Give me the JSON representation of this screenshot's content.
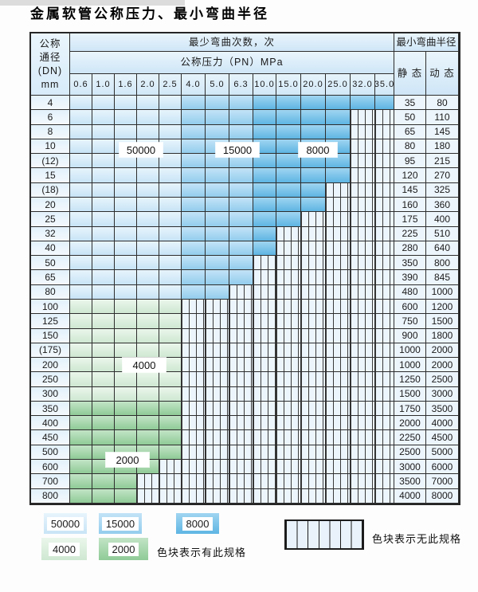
{
  "title": "金属软管公称压力、最小弯曲半径",
  "table": {
    "corner_lines": [
      "公称",
      "通径",
      "(DN)",
      "mm"
    ],
    "cycles_header": "最少弯曲次数，次",
    "pressure_header": "公称压力（PN）MPa",
    "radius_header": "最小弯曲半径",
    "static_label": "静 态",
    "dynamic_label": "动 态",
    "pressures": [
      "0.6",
      "1.0",
      "1.6",
      "2.0",
      "2.5",
      "4.0",
      "5.0",
      "6.3",
      "10.0",
      "15.0",
      "20.0",
      "25.0",
      "32.0",
      "35.0"
    ],
    "rows": [
      {
        "dn": "4",
        "colored": 14,
        "band": "b",
        "static": "35",
        "dynamic": "80"
      },
      {
        "dn": "6",
        "colored": 12,
        "band": "b",
        "static": "50",
        "dynamic": "110"
      },
      {
        "dn": "8",
        "colored": 12,
        "band": "b",
        "static": "65",
        "dynamic": "145"
      },
      {
        "dn": "10",
        "colored": 12,
        "band": "b",
        "static": "80",
        "dynamic": "180"
      },
      {
        "dn": "(12)",
        "colored": 12,
        "band": "b",
        "static": "95",
        "dynamic": "215"
      },
      {
        "dn": "15",
        "colored": 12,
        "band": "b",
        "static": "120",
        "dynamic": "270"
      },
      {
        "dn": "(18)",
        "colored": 11,
        "band": "b",
        "static": "145",
        "dynamic": "325"
      },
      {
        "dn": "20",
        "colored": 11,
        "band": "b",
        "static": "160",
        "dynamic": "360"
      },
      {
        "dn": "25",
        "colored": 10,
        "band": "b",
        "static": "175",
        "dynamic": "400"
      },
      {
        "dn": "32",
        "colored": 9,
        "band": "b",
        "static": "225",
        "dynamic": "510"
      },
      {
        "dn": "40",
        "colored": 9,
        "band": "b",
        "static": "280",
        "dynamic": "640"
      },
      {
        "dn": "50",
        "colored": 8,
        "band": "b",
        "static": "350",
        "dynamic": "800"
      },
      {
        "dn": "65",
        "colored": 8,
        "band": "b",
        "static": "390",
        "dynamic": "845"
      },
      {
        "dn": "80",
        "colored": 7,
        "band": "b",
        "static": "480",
        "dynamic": "1000"
      },
      {
        "dn": "100",
        "colored": 5,
        "band": "g1",
        "static": "600",
        "dynamic": "1200"
      },
      {
        "dn": "125",
        "colored": 5,
        "band": "g1",
        "static": "750",
        "dynamic": "1500"
      },
      {
        "dn": "150",
        "colored": 5,
        "band": "g1",
        "static": "900",
        "dynamic": "1800"
      },
      {
        "dn": "(175)",
        "colored": 5,
        "band": "g1",
        "static": "1000",
        "dynamic": "2000"
      },
      {
        "dn": "200",
        "colored": 5,
        "band": "g1",
        "static": "1000",
        "dynamic": "2000"
      },
      {
        "dn": "250",
        "colored": 5,
        "band": "g1",
        "static": "1250",
        "dynamic": "2500"
      },
      {
        "dn": "300",
        "colored": 5,
        "band": "g1",
        "static": "1500",
        "dynamic": "3000"
      },
      {
        "dn": "350",
        "colored": 5,
        "band": "g2",
        "static": "1750",
        "dynamic": "3500"
      },
      {
        "dn": "400",
        "colored": 5,
        "band": "g2",
        "static": "2000",
        "dynamic": "4000"
      },
      {
        "dn": "450",
        "colored": 5,
        "band": "g2",
        "static": "2250",
        "dynamic": "4500"
      },
      {
        "dn": "500",
        "colored": 5,
        "band": "g2",
        "static": "2500",
        "dynamic": "5000"
      },
      {
        "dn": "600",
        "colored": 4,
        "band": "g2",
        "static": "3000",
        "dynamic": "6000"
      },
      {
        "dn": "700",
        "colored": 3,
        "band": "g2",
        "static": "3500",
        "dynamic": "7000"
      },
      {
        "dn": "800",
        "colored": 3,
        "band": "g2",
        "static": "4000",
        "dynamic": "8000"
      }
    ]
  },
  "overlays": [
    {
      "text": "50000"
    },
    {
      "text": "15000"
    },
    {
      "text": "8000"
    },
    {
      "text": "4000"
    },
    {
      "text": "2000"
    }
  ],
  "legend": {
    "items": [
      {
        "label": "50000",
        "band": "b1"
      },
      {
        "label": "15000",
        "band": "b2"
      },
      {
        "label": "8000",
        "band": "b3"
      },
      {
        "label": "4000",
        "band": "g1"
      },
      {
        "label": "2000",
        "band": "g2"
      }
    ],
    "has_spec_text": "色块表示有此规格",
    "no_spec_text": "色块表示无此规格"
  },
  "colors": {
    "cycles_50000": "#d7ebf9",
    "cycles_15000": "#a9d7f2",
    "cycles_8000": "#7cc3e9",
    "cycles_4000": "#dcefde",
    "cycles_2000": "#a2d5a9",
    "grid_line": "#2d2d2d",
    "header_bg": "#d7eaf8"
  }
}
